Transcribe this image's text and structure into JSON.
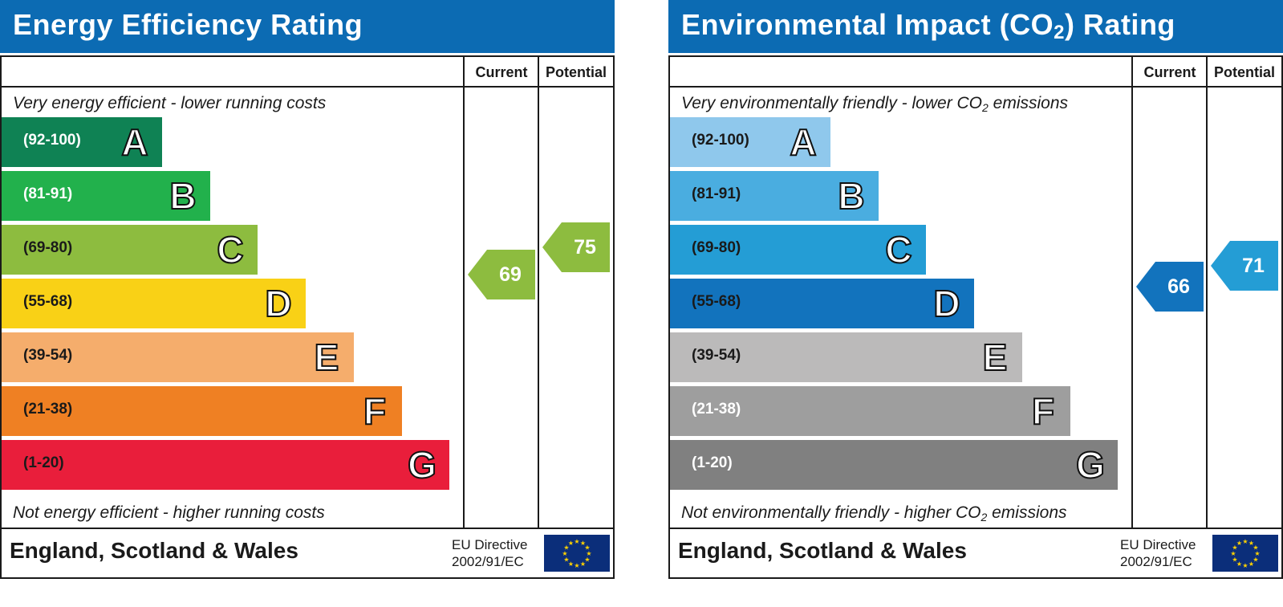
{
  "charts": [
    {
      "id": "eer",
      "title": "Energy Efficiency Rating",
      "title_sub": "",
      "title_after": "",
      "col_current": "Current",
      "col_potential": "Potential",
      "top_caption": "Very energy efficient - lower running costs",
      "top_caption_sub": "",
      "top_caption_after": "",
      "bottom_caption": "Not energy efficient - higher running costs",
      "bottom_caption_sub": "",
      "bottom_caption_after": "",
      "bands": [
        {
          "range": "(92-100)",
          "letter": "A",
          "color": "#0f8254",
          "text_color": "#ffffff"
        },
        {
          "range": "(81-91)",
          "letter": "B",
          "color": "#22b14c",
          "text_color": "#ffffff"
        },
        {
          "range": "(69-80)",
          "letter": "C",
          "color": "#8dbc3f",
          "text_color": "#1a1a1a"
        },
        {
          "range": "(55-68)",
          "letter": "D",
          "color": "#f9d116",
          "text_color": "#1a1a1a"
        },
        {
          "range": "(39-54)",
          "letter": "E",
          "color": "#f5ad6c",
          "text_color": "#1a1a1a"
        },
        {
          "range": "(21-38)",
          "letter": "F",
          "color": "#ef8023",
          "text_color": "#1a1a1a"
        },
        {
          "range": "(1-20)",
          "letter": "G",
          "color": "#e91e3b",
          "text_color": "#1a1a1a"
        }
      ],
      "current": {
        "value": 69,
        "color": "#8dbc3f"
      },
      "potential": {
        "value": 75,
        "color": "#8dbc3f"
      },
      "footer_region": "England, Scotland & Wales",
      "eu_line1": "EU Directive",
      "eu_line2": "2002/91/EC"
    },
    {
      "id": "eir",
      "title": "Environmental Impact (CO",
      "title_sub": "2",
      "title_after": ") Rating",
      "col_current": "Current",
      "col_potential": "Potential",
      "top_caption": "Very environmentally friendly - lower CO",
      "top_caption_sub": "2",
      "top_caption_after": " emissions",
      "bottom_caption": "Not environmentally friendly - higher CO",
      "bottom_caption_sub": "2",
      "bottom_caption_after": " emissions",
      "bands": [
        {
          "range": "(92-100)",
          "letter": "A",
          "color": "#8fc8ec",
          "text_color": "#1a1a1a"
        },
        {
          "range": "(81-91)",
          "letter": "B",
          "color": "#4aade0",
          "text_color": "#1a1a1a"
        },
        {
          "range": "(69-80)",
          "letter": "C",
          "color": "#249dd5",
          "text_color": "#1a1a1a"
        },
        {
          "range": "(55-68)",
          "letter": "D",
          "color": "#1273bd",
          "text_color": "#1a1a1a"
        },
        {
          "range": "(39-54)",
          "letter": "E",
          "color": "#bbbaba",
          "text_color": "#1a1a1a"
        },
        {
          "range": "(21-38)",
          "letter": "F",
          "color": "#9e9e9e",
          "text_color": "#ffffff"
        },
        {
          "range": "(1-20)",
          "letter": "G",
          "color": "#808080",
          "text_color": "#ffffff"
        }
      ],
      "current": {
        "value": 66,
        "color": "#1273bd"
      },
      "potential": {
        "value": 71,
        "color": "#249dd5"
      },
      "footer_region": "England, Scotland & Wales",
      "eu_line1": "EU Directive",
      "eu_line2": "2002/91/EC"
    }
  ]
}
